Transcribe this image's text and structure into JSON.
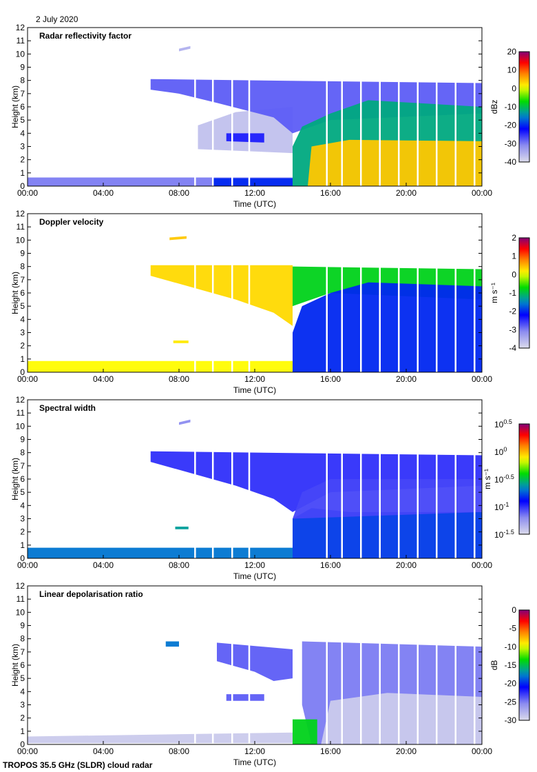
{
  "date_label": "2 July 2020",
  "footer_label": "TROPOS 35.5 GHz (SLDR) cloud radar",
  "chart_data": [
    {
      "type": "heatmap",
      "title": "Radar reflectivity factor",
      "xlabel": "Time (UTC)",
      "ylabel": "Height (km)",
      "xlim": [
        0,
        24
      ],
      "ylim": [
        0,
        12
      ],
      "xticks": [
        "00:00",
        "04:00",
        "08:00",
        "12:00",
        "16:00",
        "20:00",
        "00:00"
      ],
      "yticks": [
        "0",
        "1",
        "2",
        "3",
        "4",
        "5",
        "6",
        "7",
        "8",
        "9",
        "10",
        "11",
        "12"
      ],
      "colorbar": {
        "label": "dBz",
        "range": [
          -40,
          20
        ],
        "ticks": [
          "20",
          "10",
          "0",
          "-10",
          "-20",
          "-30",
          "-40"
        ]
      },
      "echoes": [
        {
          "value": -30,
          "poly": [
            [
              0,
              0
            ],
            [
              14,
              0
            ],
            [
              14,
              0.65
            ],
            [
              0,
              0.65
            ]
          ]
        },
        {
          "value": -37,
          "poly": [
            [
              9,
              2.8
            ],
            [
              14,
              2.5
            ],
            [
              14,
              6
            ],
            [
              11,
              5.6
            ],
            [
              9,
              4.6
            ]
          ]
        },
        {
          "value": -28,
          "poly": [
            [
              6.5,
              8.1
            ],
            [
              24,
              7.8
            ],
            [
              24,
              5.5
            ],
            [
              16,
              5
            ],
            [
              14,
              4
            ],
            [
              13,
              5.2
            ],
            [
              10,
              6.3
            ],
            [
              8,
              7
            ],
            [
              6.5,
              7.3
            ]
          ]
        },
        {
          "value": -12,
          "poly": [
            [
              14,
              0
            ],
            [
              24,
              0
            ],
            [
              24,
              6
            ],
            [
              18,
              6.5
            ],
            [
              16,
              5.5
            ],
            [
              14.5,
              4.5
            ],
            [
              14,
              3
            ]
          ]
        },
        {
          "value": 4,
          "poly": [
            [
              14.8,
              0
            ],
            [
              24,
              0
            ],
            [
              24,
              3.4
            ],
            [
              17,
              3.5
            ],
            [
              15,
              3
            ]
          ]
        },
        {
          "value": -24,
          "poly": [
            [
              10.5,
              3.4
            ],
            [
              12.5,
              3.3
            ],
            [
              12.5,
              4.0
            ],
            [
              10.5,
              4.0
            ]
          ]
        },
        {
          "value": -35,
          "poly": [
            [
              8,
              10.2
            ],
            [
              8.6,
              10.4
            ],
            [
              8.6,
              10.6
            ],
            [
              8,
              10.4
            ]
          ]
        },
        {
          "value": -20,
          "poly": [
            [
              9.8,
              0
            ],
            [
              14,
              0
            ],
            [
              14,
              0.6
            ],
            [
              9.8,
              0.6
            ]
          ]
        }
      ]
    },
    {
      "type": "heatmap",
      "title": "Doppler velocity",
      "xlabel": "Time (UTC)",
      "ylabel": "Height (km)",
      "xlim": [
        0,
        24
      ],
      "ylim": [
        0,
        12
      ],
      "xticks": [
        "00:00",
        "04:00",
        "08:00",
        "12:00",
        "16:00",
        "20:00",
        "00:00"
      ],
      "yticks": [
        "0",
        "1",
        "2",
        "3",
        "4",
        "5",
        "6",
        "7",
        "8",
        "9",
        "10",
        "11",
        "12"
      ],
      "colorbar": {
        "label": "m s⁻¹",
        "range": [
          -4,
          2
        ],
        "ticks": [
          "2",
          "1",
          "0",
          "-1",
          "-2",
          "-3",
          "-4"
        ]
      },
      "echoes": [
        {
          "value": 0.1,
          "poly": [
            [
              0,
              0
            ],
            [
              14,
              0
            ],
            [
              14,
              0.85
            ],
            [
              0,
              0.85
            ]
          ]
        },
        {
          "value": 0.3,
          "poly": [
            [
              6.5,
              8.1
            ],
            [
              14,
              8.1
            ],
            [
              14,
              3.5
            ],
            [
              13,
              4.5
            ],
            [
              11,
              5.5
            ],
            [
              9,
              6.3
            ],
            [
              6.5,
              7.3
            ]
          ]
        },
        {
          "value": -0.8,
          "poly": [
            [
              14,
              8
            ],
            [
              24,
              7.8
            ],
            [
              24,
              5.5
            ],
            [
              16,
              6
            ],
            [
              14,
              5
            ]
          ]
        },
        {
          "value": -2.0,
          "poly": [
            [
              14,
              0
            ],
            [
              24,
              0
            ],
            [
              24,
              6.5
            ],
            [
              18,
              6.8
            ],
            [
              16,
              6
            ],
            [
              14.5,
              5
            ],
            [
              14,
              3
            ]
          ]
        },
        {
          "value": 0.4,
          "poly": [
            [
              7.5,
              10
            ],
            [
              8.4,
              10.1
            ],
            [
              8.4,
              10.3
            ],
            [
              7.5,
              10.2
            ]
          ]
        },
        {
          "value": 0.2,
          "poly": [
            [
              7.7,
              2.2
            ],
            [
              8.5,
              2.2
            ],
            [
              8.5,
              2.4
            ],
            [
              7.7,
              2.4
            ]
          ]
        }
      ]
    },
    {
      "type": "heatmap",
      "title": "Spectral width",
      "xlabel": "Time (UTC)",
      "ylabel": "Height (km)",
      "xlim": [
        0,
        24
      ],
      "ylim": [
        0,
        12
      ],
      "xticks": [
        "00:00",
        "04:00",
        "08:00",
        "12:00",
        "16:00",
        "20:00",
        "00:00"
      ],
      "yticks": [
        "0",
        "1",
        "2",
        "3",
        "4",
        "5",
        "6",
        "7",
        "8",
        "9",
        "10",
        "11",
        "12"
      ],
      "colorbar": {
        "label": "m s⁻¹",
        "range": [
          -1.5,
          0.5
        ],
        "scale": "log10",
        "ticks": [
          "10^0.5",
          "10^0",
          "10^-0.5",
          "10^-1",
          "10^-1.5"
        ]
      },
      "echoes": [
        {
          "value": -0.7,
          "poly": [
            [
              0,
              0
            ],
            [
              14,
              0
            ],
            [
              14,
              0.8
            ],
            [
              0,
              0.8
            ]
          ]
        },
        {
          "value": -1.0,
          "poly": [
            [
              6.5,
              8.1
            ],
            [
              24,
              7.8
            ],
            [
              24,
              5.5
            ],
            [
              16,
              5
            ],
            [
              14,
              3.5
            ],
            [
              13,
              4.5
            ],
            [
              11,
              5.5
            ],
            [
              9,
              6.3
            ],
            [
              6.5,
              7.3
            ]
          ]
        },
        {
          "value": -0.8,
          "poly": [
            [
              14,
              0
            ],
            [
              24,
              0
            ],
            [
              24,
              3.5
            ],
            [
              17,
              3.5
            ],
            [
              15,
              3.8
            ],
            [
              14,
              3
            ]
          ]
        },
        {
          "value": -1.05,
          "poly": [
            [
              14,
              3
            ],
            [
              24,
              3.5
            ],
            [
              24,
              6
            ],
            [
              16,
              6
            ],
            [
              14.5,
              5
            ]
          ]
        },
        {
          "value": -1.2,
          "poly": [
            [
              8,
              10.1
            ],
            [
              8.6,
              10.3
            ],
            [
              8.6,
              10.5
            ],
            [
              8,
              10.3
            ]
          ]
        },
        {
          "value": -0.6,
          "poly": [
            [
              7.8,
              2.2
            ],
            [
              8.5,
              2.2
            ],
            [
              8.5,
              2.4
            ],
            [
              7.8,
              2.4
            ]
          ]
        }
      ]
    },
    {
      "type": "heatmap",
      "title": "Linear depolarisation ratio",
      "xlabel": "Time (UTC)",
      "ylabel": "Height (km)",
      "xlim": [
        0,
        24
      ],
      "ylim": [
        0,
        12
      ],
      "xticks": [
        "00:00",
        "04:00",
        "08:00",
        "12:00",
        "16:00",
        "20:00",
        "00:00"
      ],
      "yticks": [
        "0",
        "1",
        "2",
        "3",
        "4",
        "5",
        "6",
        "7",
        "8",
        "9",
        "10",
        "11",
        "12"
      ],
      "colorbar": {
        "label": "dB",
        "range": [
          -30,
          0
        ],
        "ticks": [
          "0",
          "-5",
          "-10",
          "-15",
          "-20",
          "-25",
          "-30"
        ]
      },
      "echoes": [
        {
          "value": -29,
          "poly": [
            [
              0,
              0.1
            ],
            [
              14,
              0.1
            ],
            [
              14,
              0.9
            ],
            [
              0,
              0.6
            ]
          ]
        },
        {
          "value": -24,
          "poly": [
            [
              10,
              7.7
            ],
            [
              14,
              7.2
            ],
            [
              14,
              5
            ],
            [
              13,
              4.8
            ],
            [
              12,
              5.5
            ],
            [
              10,
              6.3
            ]
          ]
        },
        {
          "value": -25,
          "poly": [
            [
              14.5,
              7.8
            ],
            [
              24,
              7.4
            ],
            [
              24,
              0
            ],
            [
              15,
              0
            ],
            [
              14.5,
              3
            ]
          ]
        },
        {
          "value": -29,
          "poly": [
            [
              15.5,
              0
            ],
            [
              24,
              0
            ],
            [
              24,
              3.6
            ],
            [
              19,
              3.9
            ],
            [
              16,
              3.3
            ]
          ]
        },
        {
          "value": -14,
          "poly": [
            [
              14,
              0
            ],
            [
              15.3,
              0
            ],
            [
              15.3,
              1.9
            ],
            [
              14,
              1.9
            ]
          ]
        },
        {
          "value": -18,
          "poly": [
            [
              7.3,
              7.4
            ],
            [
              8,
              7.4
            ],
            [
              8,
              7.8
            ],
            [
              7.3,
              7.8
            ]
          ]
        },
        {
          "value": -24,
          "poly": [
            [
              10.5,
              3.3
            ],
            [
              12.5,
              3.3
            ],
            [
              12.5,
              3.8
            ],
            [
              10.5,
              3.8
            ]
          ]
        }
      ]
    }
  ],
  "gap_hours": [
    8.84,
    9.78,
    10.8,
    11.7,
    15.8,
    16.6,
    17.6,
    18.6,
    19.6,
    20.6,
    21.6,
    22.6,
    23.6
  ]
}
